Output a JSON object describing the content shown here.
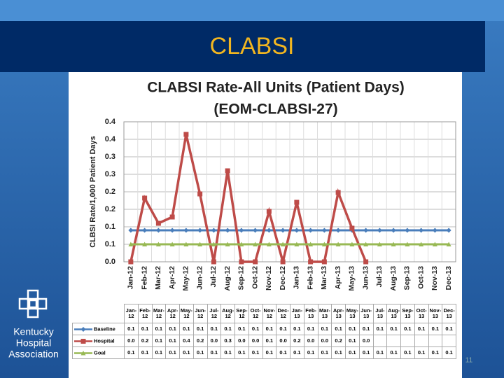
{
  "slide": {
    "title": "CLABSI",
    "page_number": "11",
    "logo": [
      "Kentucky",
      "Hospital",
      "Association"
    ]
  },
  "chart_data": {
    "type": "line",
    "title": "CLABSI Rate-All Units (Patient Days)",
    "subtitle": "(EOM-CLABSI-27)",
    "y_label": "CLBSI Rate/1,000 Patient Days",
    "categories": [
      "Jan-12",
      "Feb-12",
      "Mar-12",
      "Apr-12",
      "May-12",
      "Jun-12",
      "Jul-12",
      "Aug-12",
      "Sep-12",
      "Oct-12",
      "Nov-12",
      "Dec-12",
      "Jan-13",
      "Feb-13",
      "Mar-13",
      "Apr-13",
      "May-13",
      "Jun-13",
      "Jul-13",
      "Aug-13",
      "Sep-13",
      "Oct-13",
      "Nov-13",
      "Dec-13"
    ],
    "series": [
      {
        "name": "Baseline",
        "color": "#4a7ebb",
        "marker": "diamond",
        "values": [
          0.09,
          0.09,
          0.09,
          0.09,
          0.09,
          0.09,
          0.09,
          0.09,
          0.09,
          0.09,
          0.09,
          0.09,
          0.09,
          0.09,
          0.09,
          0.09,
          0.09,
          0.09,
          0.09,
          0.09,
          0.09,
          0.09,
          0.09,
          0.09
        ],
        "value_labels": [
          "0.1",
          "0.1",
          "0.1",
          "0.1",
          "0.1",
          "0.1",
          "0.1",
          "0.1",
          "0.1",
          "0.1",
          "0.1",
          "0.1",
          "0.1",
          "0.1",
          "0.1",
          "0.1",
          "0.1",
          "0.1",
          "0.1",
          "0.1",
          "0.1",
          "0.1",
          "0.1",
          "0.1"
        ]
      },
      {
        "name": "Hospital",
        "color": "#be4b48",
        "marker": "square",
        "values": [
          0,
          0.182,
          0.11,
          0.128,
          0.364,
          0.194,
          0,
          0.26,
          0,
          0,
          0.144,
          0,
          0.17,
          0,
          0,
          0.198,
          0.096,
          0,
          null,
          null,
          null,
          null,
          null,
          null
        ],
        "value_labels": [
          "0.0",
          "0.2",
          "0.1",
          "0.1",
          "0.4",
          "0.2",
          "0.0",
          "0.3",
          "0.0",
          "0.0",
          "0.1",
          "0.0",
          "0.2",
          "0.0",
          "0.0",
          "0.2",
          "0.1",
          "0.0",
          null,
          null,
          null,
          null,
          null,
          null
        ]
      },
      {
        "name": "Goal",
        "color": "#98b954",
        "marker": "triangle",
        "values": [
          0.05,
          0.05,
          0.05,
          0.05,
          0.05,
          0.05,
          0.05,
          0.05,
          0.05,
          0.05,
          0.05,
          0.05,
          0.05,
          0.05,
          0.05,
          0.05,
          0.05,
          0.05,
          0.05,
          0.05,
          0.05,
          0.05,
          0.05,
          0.05
        ],
        "value_labels": [
          "0.1",
          "0.1",
          "0.1",
          "0.1",
          "0.1",
          "0.1",
          "0.1",
          "0.1",
          "0.1",
          "0.1",
          "0.1",
          "0.1",
          "0.1",
          "0.1",
          "0.1",
          "0.1",
          "0.1",
          "0.1",
          "0.1",
          "0.1",
          "0.1",
          "0.1",
          "0.1",
          "0.1"
        ]
      }
    ],
    "ylim": [
      0,
      0.4
    ],
    "yticks": [
      {
        "value": 0,
        "label": "0.0"
      },
      {
        "value": 0.05,
        "label": "0.1"
      },
      0.1,
      {
        "value": 0.15,
        "label": "0.2"
      },
      0.2,
      {
        "value": 0.25,
        "label": "0.3"
      },
      0.3,
      {
        "value": 0.35,
        "label": "0.4"
      },
      0.4
    ],
    "grid": true
  }
}
